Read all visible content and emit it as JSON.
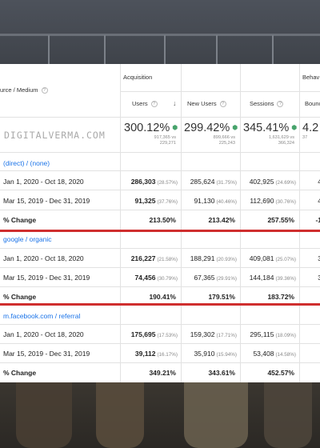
{
  "report": {
    "headers": {
      "source_medium": "urce / Medium",
      "acquisition": "Acquisition",
      "behavior": "Behav",
      "users": "Users",
      "new_users": "New Users",
      "sessions": "Sessions",
      "bounce": "Bounc"
    },
    "watermark": "DIGITALVERMA.COM",
    "totals": {
      "users": {
        "change": "300.12%",
        "detail_1": "917,365 vs",
        "detail_2": "229,271"
      },
      "new_users": {
        "change": "299.42%",
        "detail_1": "899,666 vs",
        "detail_2": "225,243"
      },
      "sessions": {
        "change": "345.41%",
        "detail_1": "1,631,629 vs",
        "detail_2": "366,324"
      },
      "bounce": {
        "change": "4.2",
        "detail_1": "37"
      }
    },
    "groups": [
      {
        "source": "(direct) / (none)",
        "rows": [
          {
            "label": "Jan 1, 2020 - Oct 18, 2020",
            "users": "286,303",
            "users_pct": "(28.57%)",
            "new_users": "285,624",
            "new_users_pct": "(31.75%)",
            "sessions": "402,925",
            "sessions_pct": "(24.69%)",
            "bounce": "4"
          },
          {
            "label": "Mar 15, 2019 - Dec 31, 2019",
            "users": "91,325",
            "users_pct": "(37.76%)",
            "new_users": "91,130",
            "new_users_pct": "(40.46%)",
            "sessions": "112,690",
            "sessions_pct": "(30.76%)",
            "bounce": "4"
          },
          {
            "label": "% Change",
            "users": "213.50%",
            "new_users": "213.42%",
            "sessions": "257.55%",
            "bounce": "-1"
          }
        ]
      },
      {
        "source": "google / organic",
        "rows": [
          {
            "label": "Jan 1, 2020 - Oct 18, 2020",
            "users": "216,227",
            "users_pct": "(21.58%)",
            "new_users": "188,291",
            "new_users_pct": "(20.93%)",
            "sessions": "409,081",
            "sessions_pct": "(25.07%)",
            "bounce": "3"
          },
          {
            "label": "Mar 15, 2019 - Dec 31, 2019",
            "users": "74,456",
            "users_pct": "(30.79%)",
            "new_users": "67,365",
            "new_users_pct": "(29.91%)",
            "sessions": "144,184",
            "sessions_pct": "(39.36%)",
            "bounce": "3"
          },
          {
            "label": "% Change",
            "users": "190.41%",
            "new_users": "179.51%",
            "sessions": "183.72%",
            "bounce": ""
          }
        ]
      },
      {
        "source": "m.facebook.com / referral",
        "rows": [
          {
            "label": "Jan 1, 2020 - Oct 18, 2020",
            "users": "175,695",
            "users_pct": "(17.53%)",
            "new_users": "159,302",
            "new_users_pct": "(17.71%)",
            "sessions": "295,115",
            "sessions_pct": "(18.09%)",
            "bounce": ""
          },
          {
            "label": "Mar 15, 2019 - Dec 31, 2019",
            "users": "39,112",
            "users_pct": "(16.17%)",
            "new_users": "35,910",
            "new_users_pct": "(15.94%)",
            "sessions": "53,408",
            "sessions_pct": "(14.58%)",
            "bounce": ""
          },
          {
            "label": "% Change",
            "users": "349.21%",
            "new_users": "343.61%",
            "sessions": "452.57%",
            "bounce": ""
          }
        ]
      }
    ]
  },
  "colors": {
    "link": "#1a73e8",
    "highlight": "#cf2e2e",
    "positive": "#47a36b"
  }
}
